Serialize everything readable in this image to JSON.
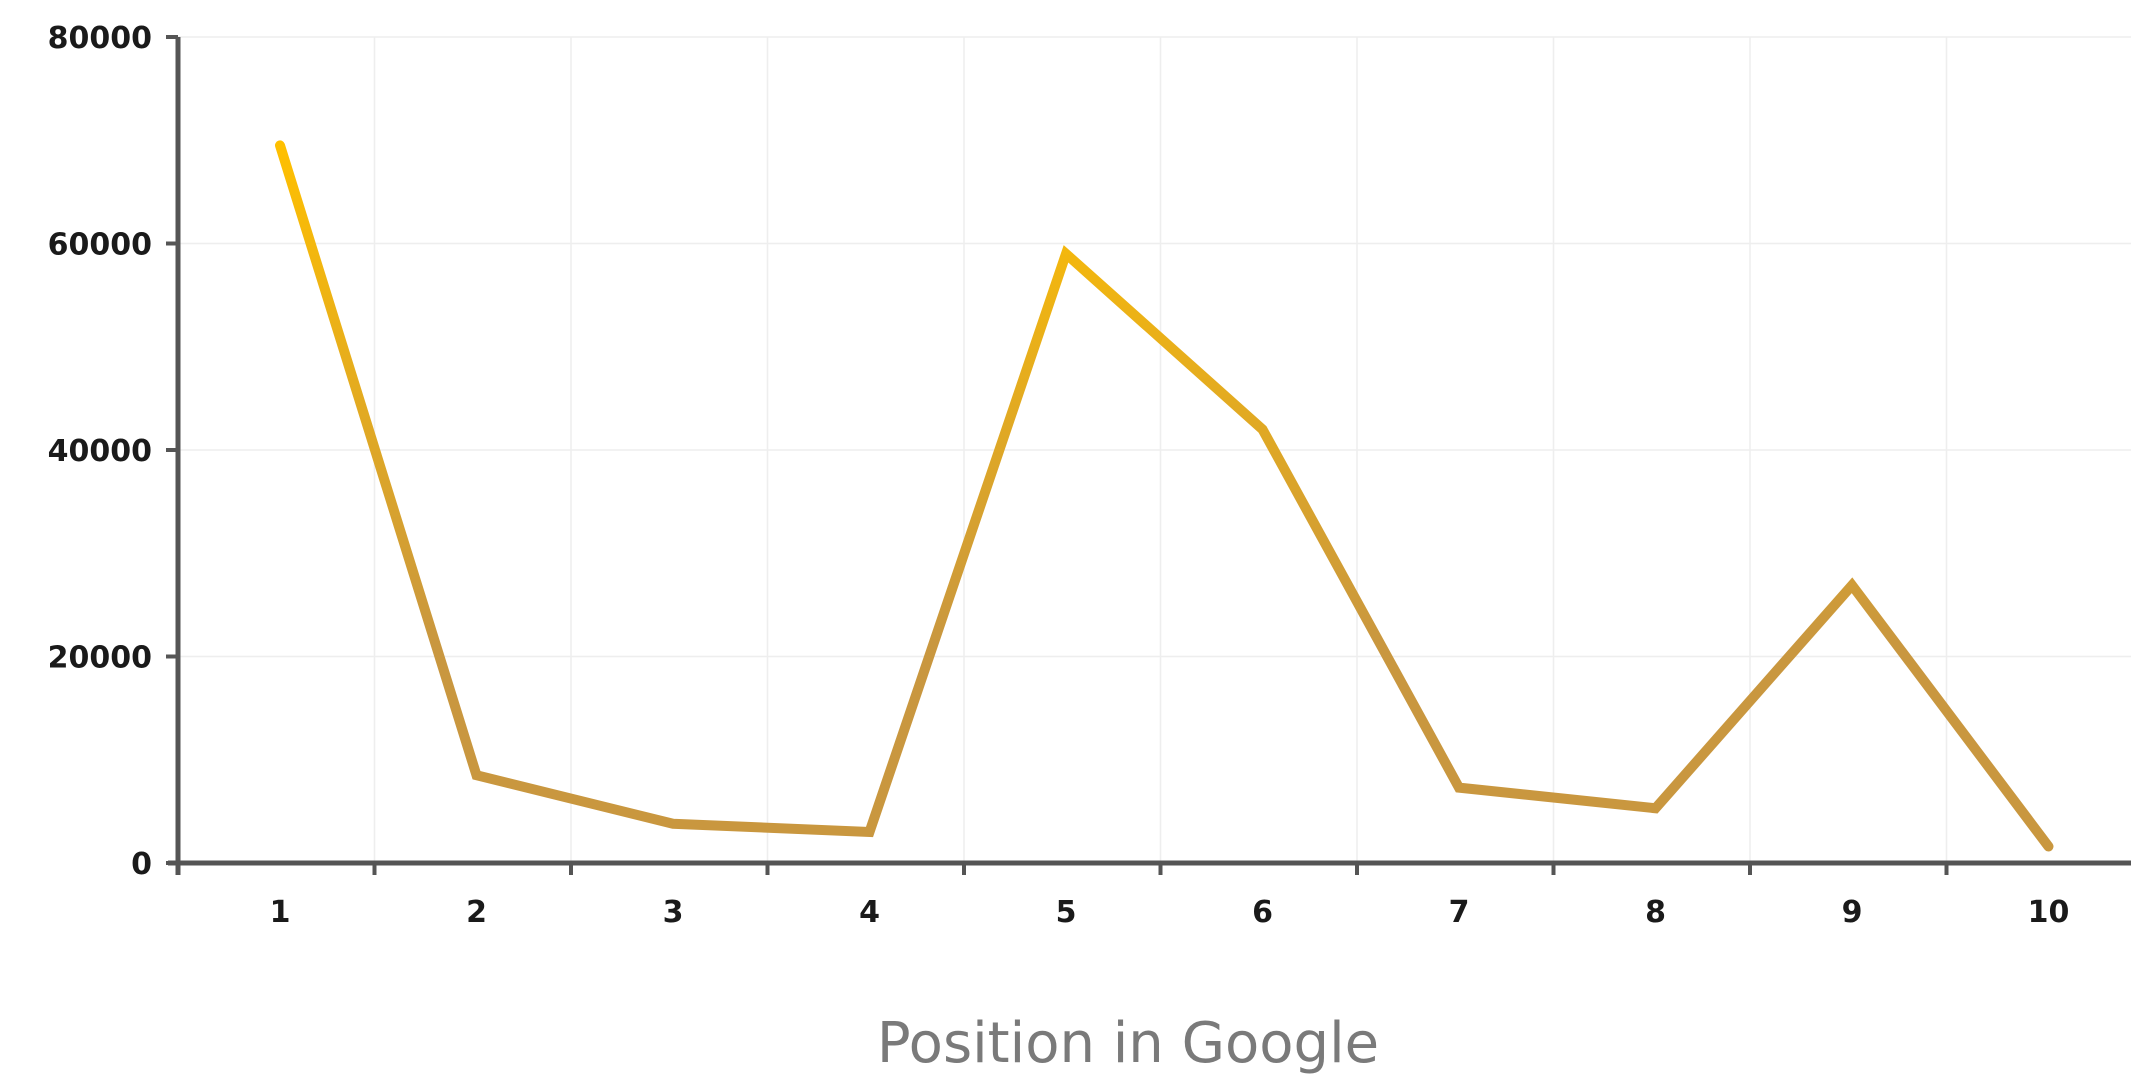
{
  "chart_data": {
    "type": "line",
    "title": "",
    "xlabel": "Position in Google",
    "ylabel": "",
    "x": [
      1,
      2,
      3,
      4,
      5,
      6,
      7,
      8,
      9,
      10
    ],
    "series": [
      {
        "values": [
          69500,
          8500,
          3800,
          3000,
          59000,
          42000,
          7300,
          5300,
          26900,
          1600
        ]
      }
    ],
    "ylim": [
      0,
      80000
    ],
    "yticks": [
      0,
      20000,
      40000,
      60000,
      80000
    ],
    "ytick_labels": [
      "0",
      "20000",
      "40000",
      "60000",
      "80000"
    ],
    "xtick_labels": [
      "1",
      "2",
      "3",
      "4",
      "5",
      "6",
      "7",
      "8",
      "9",
      "10"
    ],
    "grid": true,
    "legend": "none",
    "colors": {
      "line_top": "#FFC000",
      "line_bottom": "#C9973F",
      "axis": "#555555",
      "grid": "#eeeeee"
    }
  }
}
